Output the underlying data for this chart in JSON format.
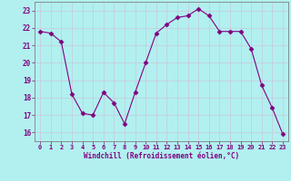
{
  "x": [
    0,
    1,
    2,
    3,
    4,
    5,
    6,
    7,
    8,
    9,
    10,
    11,
    12,
    13,
    14,
    15,
    16,
    17,
    18,
    19,
    20,
    21,
    22,
    23
  ],
  "y": [
    21.8,
    21.7,
    21.2,
    18.2,
    17.1,
    17.0,
    18.3,
    17.7,
    16.5,
    18.3,
    20.0,
    21.7,
    22.2,
    22.6,
    22.7,
    23.1,
    22.7,
    21.8,
    21.8,
    21.8,
    20.8,
    18.7,
    17.4,
    15.9
  ],
  "xlabel": "Windchill (Refroidissement éolien,°C)",
  "xlim": [
    -0.5,
    23.5
  ],
  "ylim": [
    15.5,
    23.5
  ],
  "yticks": [
    16,
    17,
    18,
    19,
    20,
    21,
    22,
    23
  ],
  "xticks": [
    0,
    1,
    2,
    3,
    4,
    5,
    6,
    7,
    8,
    9,
    10,
    11,
    12,
    13,
    14,
    15,
    16,
    17,
    18,
    19,
    20,
    21,
    22,
    23
  ],
  "line_color": "#800080",
  "marker": "D",
  "marker_size": 2.5,
  "bg_color": "#b2f0f0",
  "grid_color": "#c8c8d8",
  "label_color": "#800080",
  "tick_color": "#800080",
  "fig_bg": "#b2f0f0"
}
